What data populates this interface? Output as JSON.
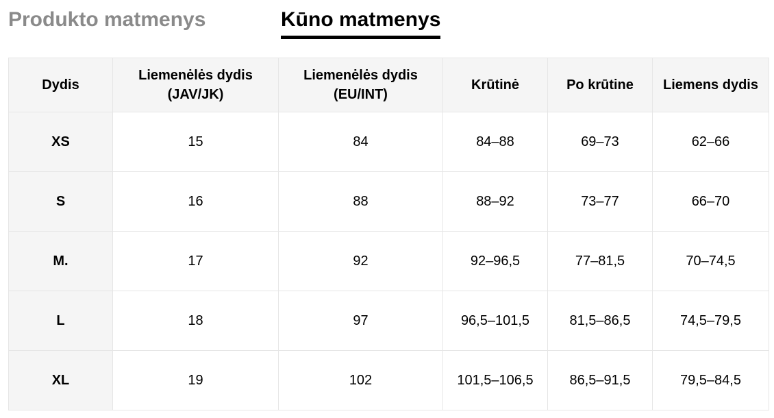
{
  "tabs": {
    "product": "Produkto matmenys",
    "body": "Kūno matmenys"
  },
  "table": {
    "headers": [
      "Dydis",
      "Liemenėlės dydis (JAV/JK)",
      "Liemenėlės dydis (EU/INT)",
      "Krūtinė",
      "Po krūtine",
      "Liemens dydis"
    ],
    "rows": [
      [
        "XS",
        "15",
        "84",
        "84–88",
        "69–73",
        "62–66"
      ],
      [
        "S",
        "16",
        "88",
        "88–92",
        "73–77",
        "66–70"
      ],
      [
        "M.",
        "17",
        "92",
        "92–96,5",
        "77–81,5",
        "70–74,5"
      ],
      [
        "L",
        "18",
        "97",
        "96,5–101,5",
        "81,5–86,5",
        "74,5–79,5"
      ],
      [
        "XL",
        "19",
        "102",
        "101,5–106,5",
        "86,5–91,5",
        "79,5–84,5"
      ]
    ]
  }
}
